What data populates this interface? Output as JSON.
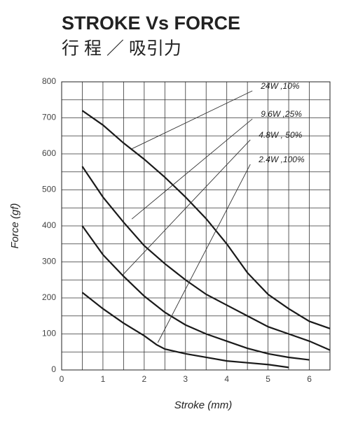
{
  "chart_data": {
    "type": "line",
    "title": "STROKE Vs FORCE",
    "subtitle": "行 程 ／ 吸引力",
    "x_label": "Stroke (mm)",
    "y_label": "Force (gf)",
    "xlim": [
      0,
      6.5
    ],
    "ylim": [
      0,
      800
    ],
    "xticks": [
      0,
      1,
      2,
      3,
      4,
      5,
      6
    ],
    "yticks": [
      0,
      100,
      200,
      300,
      400,
      500,
      600,
      700,
      800
    ],
    "x_minor_grid": [
      0.5,
      1.5,
      2.5,
      3.5,
      4.5,
      5.5,
      6.5
    ],
    "y_minor_grid": [
      50,
      150,
      250,
      350,
      450,
      550,
      650,
      750
    ],
    "grid": true,
    "series": [
      {
        "name": "24W ,10%",
        "color": "#1a1a1a",
        "x": [
          0.5,
          1,
          1.5,
          2,
          2.5,
          3,
          3.5,
          4,
          4.5,
          5,
          5.5,
          6,
          6.5
        ],
        "values": [
          720,
          680,
          630,
          585,
          535,
          480,
          420,
          350,
          270,
          210,
          170,
          135,
          115
        ],
        "leader": [
          4.62,
          775,
          1.7,
          614
        ]
      },
      {
        "name": "9.6W ,25%",
        "color": "#1a1a1a",
        "x": [
          0.5,
          1,
          1.5,
          2,
          2.5,
          3,
          3.5,
          4,
          4.5,
          5,
          5.5,
          6,
          6.5
        ],
        "values": [
          565,
          480,
          410,
          345,
          295,
          250,
          210,
          180,
          150,
          120,
          100,
          80,
          55
        ],
        "leader": [
          4.62,
          697,
          1.7,
          419
        ]
      },
      {
        "name": "4.8W , 50%",
        "color": "#1a1a1a",
        "x": [
          0.5,
          1,
          1.5,
          2,
          2.5,
          3,
          3.5,
          4,
          4.5,
          5,
          5.5,
          6
        ],
        "values": [
          400,
          320,
          260,
          205,
          160,
          125,
          100,
          80,
          60,
          45,
          35,
          28
        ],
        "leader": [
          4.57,
          639,
          1.48,
          264
        ]
      },
      {
        "name": "2.4W ,100%",
        "color": "#1a1a1a",
        "x": [
          0.5,
          1,
          1.5,
          2,
          2.3,
          2.5,
          3,
          3.5,
          4,
          4.5,
          5,
          5.5
        ],
        "values": [
          215,
          170,
          130,
          95,
          70,
          58,
          45,
          35,
          25,
          20,
          15,
          7
        ],
        "leader": [
          4.57,
          571,
          2.33,
          76
        ]
      }
    ]
  }
}
